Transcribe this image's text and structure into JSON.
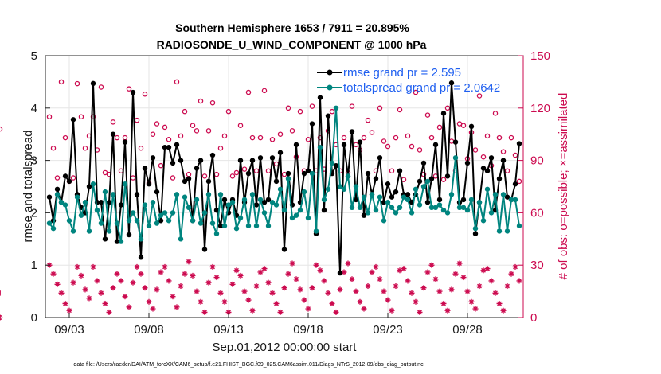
{
  "chart_data": {
    "type": "line",
    "title_line1": "Southern Hemisphere 1653 / 7911 = 20.895%",
    "title_line2": "RADIOSONDE_U_WIND_COMPONENT @ 1000 hPa",
    "xlabel": "Sep.01,2012 00:00:00 start",
    "ylabel_left": "rmse and totalspread",
    "ylabel_right": "# of obs: o=possible; ×=assimilated",
    "footnote": "data file: /Users/raeder/DAI/ATM_forcXX/CAM6_setup/f.e21.FHIST_BGC.f09_025.CAM6assim.011/Diags_NTrS_2012-09/obs_diag_output.nc",
    "xlim": [
      1.5,
      31.5
    ],
    "ylim_left": [
      0,
      5
    ],
    "ylim_right": [
      0,
      150
    ],
    "x_ticks": [
      3,
      8,
      13,
      18,
      23,
      28
    ],
    "x_tick_labels": [
      "09/03",
      "09/08",
      "09/13",
      "09/18",
      "09/23",
      "09/28"
    ],
    "y_left_ticks": [
      0,
      1,
      2,
      3,
      4,
      5
    ],
    "y_left_tick_labels": [
      "0",
      "1",
      "2",
      "3",
      "4",
      "5"
    ],
    "y_right_ticks": [
      0,
      30,
      60,
      90,
      120,
      150
    ],
    "y_right_tick_labels": [
      "0",
      "30",
      "60",
      "90",
      "120",
      "150"
    ],
    "grid": true,
    "legend_position": "top-right",
    "x": [
      1.75,
      2.0,
      2.25,
      2.5,
      2.75,
      3.0,
      3.25,
      3.5,
      3.75,
      4.0,
      4.25,
      4.5,
      4.75,
      5.0,
      5.25,
      5.5,
      5.75,
      6.0,
      6.25,
      6.5,
      6.75,
      7.0,
      7.25,
      7.5,
      7.75,
      8.0,
      8.25,
      8.5,
      8.75,
      9.0,
      9.25,
      9.5,
      9.75,
      10.0,
      10.25,
      10.5,
      10.75,
      11.0,
      11.25,
      11.5,
      11.75,
      12.0,
      12.25,
      12.5,
      12.75,
      13.0,
      13.25,
      13.5,
      13.75,
      14.0,
      14.25,
      14.5,
      14.75,
      15.0,
      15.25,
      15.5,
      15.75,
      16.0,
      16.25,
      16.5,
      16.75,
      17.0,
      17.25,
      17.5,
      17.75,
      18.0,
      18.25,
      18.5,
      18.75,
      19.0,
      19.25,
      19.5,
      19.75,
      20.0,
      20.25,
      20.5,
      20.75,
      21.0,
      21.25,
      21.5,
      21.75,
      22.0,
      22.25,
      22.5,
      22.75,
      23.0,
      23.25,
      23.5,
      23.75,
      24.0,
      24.25,
      24.5,
      24.75,
      25.0,
      25.25,
      25.5,
      25.75,
      26.0,
      26.25,
      26.5,
      26.75,
      27.0,
      27.25,
      27.5,
      27.75,
      28.0,
      28.25,
      28.5,
      28.75,
      29.0,
      29.25,
      29.5,
      29.75,
      30.0,
      30.25,
      30.5,
      30.75,
      31.0,
      31.25
    ],
    "series": [
      {
        "name": "rmse grand pr = 2.595",
        "color": "#000000",
        "values": [
          2.3,
          1.85,
          2.45,
          2.2,
          2.7,
          2.6,
          3.78,
          2.35,
          2.1,
          2.0,
          2.5,
          4.47,
          2.2,
          2.2,
          1.5,
          2.2,
          3.5,
          1.45,
          2.15,
          3.35,
          1.58,
          4.3,
          2.35,
          1.15,
          2.85,
          2.55,
          3.05,
          2.4,
          1.85,
          3.25,
          3.25,
          2.95,
          3.3,
          3.0,
          2.6,
          2.65,
          1.85,
          2.85,
          3.0,
          1.3,
          2.6,
          3.1,
          2.05,
          1.75,
          2.25,
          2.0,
          2.25,
          1.95,
          3.0,
          2.2,
          2.75,
          3.0,
          2.15,
          3.05,
          2.2,
          2.25,
          3.05,
          2.6,
          3.15,
          1.3,
          2.75,
          2.15,
          3.3,
          2.2,
          2.75,
          2.8,
          3.7,
          1.6,
          4.2,
          2.05,
          3.85,
          2.75,
          2.9,
          0.85,
          3.3,
          2.7,
          3.55,
          2.25,
          3.35,
          1.95,
          2.75,
          2.35,
          2.65,
          3.05,
          2.2,
          2.55,
          2.3,
          2.4,
          2.8,
          2.35,
          2.35,
          2.2,
          2.35,
          2.6,
          2.95,
          2.2,
          2.65,
          3.3,
          2.25,
          3.9,
          2.7,
          4.48,
          3.35,
          2.2,
          2.25,
          2.95,
          3.65,
          1.6,
          2.2,
          2.85,
          2.8,
          3.05,
          2.05,
          2.65,
          3.0,
          2.3,
          2.25,
          2.55,
          3.32
        ]
      },
      {
        "name": "totalspread grand pr = 2.0642",
        "color": "#00857f",
        "values": [
          1.8,
          1.7,
          2.35,
          2.2,
          2.15,
          1.85,
          1.65,
          2.3,
          1.95,
          2.2,
          1.65,
          2.55,
          2.05,
          1.8,
          2.4,
          1.65,
          2.35,
          1.8,
          1.45,
          2.55,
          1.85,
          2.0,
          1.85,
          1.5,
          2.15,
          1.75,
          2.2,
          1.8,
          1.95,
          2.0,
          1.85,
          2.0,
          2.35,
          1.5,
          2.3,
          2.1,
          1.85,
          2.25,
          1.8,
          2.0,
          2.35,
          1.8,
          1.6,
          2.35,
          1.75,
          2.15,
          2.2,
          1.7,
          1.9,
          2.25,
          1.75,
          2.35,
          1.75,
          2.25,
          2.0,
          1.75,
          2.2,
          2.15,
          2.45,
          2.05,
          2.65,
          1.9,
          1.95,
          2.05,
          2.4,
          1.9,
          2.75,
          1.65,
          3.25,
          2.25,
          2.45,
          2.95,
          4.0,
          2.5,
          2.45,
          2.7,
          2.1,
          2.5,
          2.1,
          2.3,
          2.0,
          2.35,
          2.05,
          2.3,
          1.85,
          2.2,
          2.1,
          2.0,
          2.1,
          2.3,
          2.25,
          2.0,
          2.45,
          2.15,
          2.5,
          2.6,
          2.1,
          2.1,
          2.15,
          2.05,
          2.0,
          2.35,
          3.05,
          2.1,
          2.1,
          2.05,
          2.25,
          1.7,
          2.2,
          1.85,
          2.45,
          2.0,
          2.35,
          1.65,
          2.35,
          1.65,
          2.25,
          2.25,
          1.75
        ]
      }
    ],
    "obs_possible": {
      "name": "possible",
      "color": "#cc0a4f",
      "values": [
        115,
        97,
        80,
        135,
        103,
        78,
        80,
        134,
        115,
        97,
        104,
        115,
        96,
        132,
        83,
        82,
        112,
        103,
        84,
        103,
        131,
        80,
        113,
        97,
        128,
        77,
        105,
        111,
        87,
        109,
        102,
        80,
        135,
        104,
        118,
        82,
        110,
        107,
        124,
        81,
        107,
        123,
        82,
        97,
        104,
        118,
        81,
        83,
        110,
        85,
        129,
        103,
        84,
        103,
        130,
        84,
        102,
        88,
        105,
        82,
        120,
        107,
        92,
        118,
        84,
        102,
        121,
        84,
        103,
        85,
        107,
        118,
        99,
        84,
        103,
        83,
        121,
        99,
        96,
        103,
        113,
        106,
        84,
        120,
        101,
        98,
        84,
        103,
        119,
        79,
        104,
        98,
        129,
        96,
        82,
        116,
        103,
        81,
        109,
        79,
        120,
        101,
        84,
        111,
        110,
        91,
        106,
        96,
        127,
        92,
        104,
        87,
        117,
        103,
        95,
        84,
        103,
        93,
        78,
        108,
        0
      ]
    },
    "obs_assimilated": {
      "name": "assimilated",
      "color": "#cc0a4f",
      "values": [
        30,
        25,
        19,
        14,
        8,
        4,
        20,
        29,
        24,
        16,
        11,
        29,
        21,
        14,
        8,
        3,
        17,
        25,
        21,
        12,
        6,
        20,
        29,
        25,
        17,
        9,
        5,
        16,
        26,
        29,
        21,
        12,
        6,
        18,
        25,
        32,
        24,
        15,
        9,
        3,
        20,
        29,
        23,
        14,
        9,
        3,
        19,
        27,
        24,
        15,
        10,
        4,
        18,
        26,
        28,
        20,
        14,
        8,
        3,
        17,
        25,
        31,
        22,
        16,
        10,
        5,
        17,
        30,
        27,
        21,
        14,
        8,
        3,
        16,
        26,
        31,
        22,
        15,
        9,
        5,
        18,
        26,
        29,
        22,
        15,
        10,
        4,
        18,
        27,
        28,
        21,
        14,
        9,
        3,
        17,
        26,
        30,
        22,
        15,
        8,
        4,
        16,
        25,
        31,
        23,
        15,
        9,
        5,
        18,
        27,
        28,
        21,
        14,
        8,
        4,
        18,
        25,
        29,
        21,
        14,
        0
      ]
    }
  }
}
